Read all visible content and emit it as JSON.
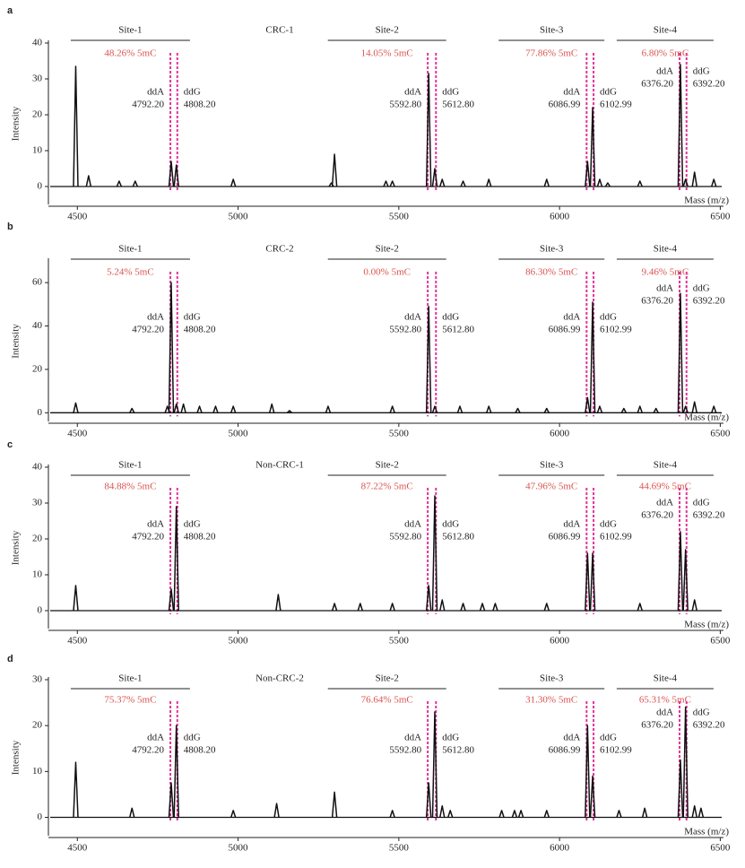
{
  "chart_data": [
    {
      "type": "spectrum",
      "panel": "a",
      "title": "CRC-1",
      "y_label": "Intensity",
      "x_label": "Mass (m/z)",
      "color": "#111111",
      "marker_color": "#e0359a",
      "percent_color": "#d9534f",
      "xlim": [
        4410,
        6510
      ],
      "xticks": [
        4500,
        5000,
        5500,
        6000,
        6500
      ],
      "ylim": [
        -5,
        40
      ],
      "yticks": [
        0,
        10,
        20,
        30,
        40
      ],
      "x": [
        4495,
        4535,
        4630,
        4680,
        4792,
        4808,
        4985,
        5290,
        5300,
        5460,
        5480,
        5593,
        5612,
        5635,
        5700,
        5780,
        5960,
        6087,
        6103,
        6125,
        6150,
        6250,
        6376,
        6392,
        6420,
        6480
      ],
      "values": [
        33.5,
        3,
        1.5,
        1.5,
        7,
        6,
        2,
        1,
        9,
        1.5,
        1.5,
        31.5,
        5,
        2,
        1.5,
        2,
        2,
        7,
        22,
        2,
        1,
        1.5,
        34,
        2,
        4,
        2
      ],
      "sites": [
        {
          "name": "Site-1",
          "mC": "48.26% 5mC",
          "ddA": {
            "label": "ddA",
            "mass": {
              "value": 4792.2,
              "label": "4792.20"
            }
          },
          "ddG": {
            "label": "ddG",
            "mass": {
              "value": 4808.2,
              "label": "4808.20"
            }
          }
        },
        {
          "name": "Site-2",
          "mC": "14.05% 5mC",
          "ddA": {
            "label": "ddA",
            "mass": {
              "value": 5592.8,
              "label": "5592.80"
            }
          },
          "ddG": {
            "label": "ddG",
            "mass": {
              "value": 5612.8,
              "label": "5612.80"
            }
          }
        },
        {
          "name": "Site-3",
          "mC": "77.86% 5mC",
          "ddA": {
            "label": "ddA",
            "mass": 6086.99
          },
          "ddG": {
            "label": "ddG",
            "mass": 6102.99
          }
        },
        {
          "name": "Site-4",
          "mC": "6.80% 5mC",
          "ddA": {
            "label": "ddA",
            "mass": {
              "value": 6376.2,
              "label": "6376.20"
            }
          },
          "ddG": {
            "label": "ddG",
            "mass": {
              "value": 6392.2,
              "label": "6392.20"
            }
          }
        }
      ]
    },
    {
      "type": "spectrum",
      "panel": "b",
      "title": "CRC-2",
      "y_label": "Intensity",
      "x_label": "Mass (m/z)",
      "color": "#111111",
      "marker_color": "#e0359a",
      "percent_color": "#d9534f",
      "xlim": [
        4410,
        6510
      ],
      "xticks": [
        4500,
        5000,
        5500,
        6000,
        6500
      ],
      "ylim": [
        -4,
        70
      ],
      "yticks": [
        0,
        20,
        40,
        60
      ],
      "x": [
        4495,
        4670,
        4780,
        4792,
        4808,
        4830,
        4880,
        4930,
        4985,
        5105,
        5160,
        5280,
        5480,
        5593,
        5612,
        5690,
        5780,
        5870,
        5960,
        6087,
        6103,
        6125,
        6200,
        6250,
        6300,
        6376,
        6392,
        6420,
        6480
      ],
      "values": [
        4.5,
        2,
        3,
        60,
        4,
        4,
        3,
        3,
        3,
        4,
        1,
        3,
        3,
        49,
        3,
        3,
        3,
        2,
        2,
        7,
        51,
        3,
        2,
        3,
        2,
        55,
        3,
        5,
        3
      ],
      "sites": [
        {
          "name": "Site-1",
          "mC": "5.24% 5mC",
          "ddA": {
            "label": "ddA",
            "mass": {
              "value": 4792.2,
              "label": "4792.20"
            }
          },
          "ddG": {
            "label": "ddG",
            "mass": {
              "value": 4808.2,
              "label": "4808.20"
            }
          }
        },
        {
          "name": "Site-2",
          "mC": "0.00% 5mC",
          "ddA": {
            "label": "ddA",
            "mass": {
              "value": 5592.8,
              "label": "5592.80"
            }
          },
          "ddG": {
            "label": "ddG",
            "mass": {
              "value": 5612.8,
              "label": "5612.80"
            }
          }
        },
        {
          "name": "Site-3",
          "mC": "86.30% 5mC",
          "ddA": {
            "label": "ddA",
            "mass": 6086.99
          },
          "ddG": {
            "label": "ddG",
            "mass": 6102.99
          }
        },
        {
          "name": "Site-4",
          "mC": "9.46% 5mC",
          "ddA": {
            "label": "ddA",
            "mass": {
              "value": 6376.2,
              "label": "6376.20"
            }
          },
          "ddG": {
            "label": "ddG",
            "mass": {
              "value": 6392.2,
              "label": "6392.20"
            }
          }
        }
      ]
    },
    {
      "type": "spectrum",
      "panel": "c",
      "title": "Non-CRC-1",
      "y_label": "Intensity",
      "x_label": "Mass (m/z)",
      "color": "#111111",
      "marker_color": "#e0359a",
      "percent_color": "#d9534f",
      "xlim": [
        4410,
        6510
      ],
      "xticks": [
        4500,
        5000,
        5500,
        6000,
        6500
      ],
      "ylim": [
        -5,
        40
      ],
      "yticks": [
        0,
        10,
        20,
        30,
        40
      ],
      "x": [
        4495,
        4792,
        4808,
        5125,
        5300,
        5380,
        5480,
        5593,
        5612,
        5635,
        5700,
        5760,
        5800,
        5960,
        6087,
        6103,
        6250,
        6376,
        6392,
        6420
      ],
      "values": [
        7,
        6,
        29,
        4.5,
        2,
        2,
        2,
        7,
        32,
        3,
        2,
        2,
        2,
        2,
        16,
        16,
        2,
        22,
        17,
        3
      ],
      "sites": [
        {
          "name": "Site-1",
          "mC": "84.88% 5mC",
          "ddA": {
            "label": "ddA",
            "mass": {
              "value": 4792.2,
              "label": "4792.20"
            }
          },
          "ddG": {
            "label": "ddG",
            "mass": {
              "value": 4808.2,
              "label": "4808.20"
            }
          }
        },
        {
          "name": "Site-2",
          "mC": "87.22% 5mC",
          "ddA": {
            "label": "ddA",
            "mass": {
              "value": 5592.8,
              "label": "5592.80"
            }
          },
          "ddG": {
            "label": "ddG",
            "mass": {
              "value": 5612.8,
              "label": "5612.80"
            }
          }
        },
        {
          "name": "Site-3",
          "mC": "47.96% 5mC",
          "ddA": {
            "label": "ddA",
            "mass": 6086.99
          },
          "ddG": {
            "label": "ddG",
            "mass": 6102.99
          }
        },
        {
          "name": "Site-4",
          "mC": "44.69% 5mC",
          "ddA": {
            "label": "ddA",
            "mass": {
              "value": 6376.2,
              "label": "6376.20"
            }
          },
          "ddG": {
            "label": "ddG",
            "mass": {
              "value": 6392.2,
              "label": "6392.20"
            }
          }
        }
      ]
    },
    {
      "type": "spectrum",
      "panel": "d",
      "title": "Non-CRC-2",
      "y_label": "Intensity",
      "x_label": "Mass (m/z)",
      "color": "#111111",
      "marker_color": "#e0359a",
      "percent_color": "#d9534f",
      "xlim": [
        4410,
        6510
      ],
      "xticks": [
        4500,
        5000,
        5500,
        6000,
        6500
      ],
      "ylim": [
        -4,
        30
      ],
      "yticks": [
        0,
        10,
        20,
        30
      ],
      "x": [
        4495,
        4670,
        4792,
        4808,
        4985,
        5120,
        5300,
        5480,
        5593,
        5612,
        5635,
        5660,
        5820,
        5860,
        5880,
        5960,
        6087,
        6103,
        6185,
        6265,
        6376,
        6392,
        6420,
        6440
      ],
      "values": [
        12,
        2,
        7.5,
        20,
        1.5,
        3,
        5.5,
        1.5,
        7.5,
        23,
        2.5,
        1.5,
        1.5,
        1.5,
        1.5,
        1.5,
        20,
        9,
        1.5,
        2,
        12.5,
        24,
        2.5,
        2
      ],
      "sites": [
        {
          "name": "Site-1",
          "mC": "75.37% 5mC",
          "ddA": {
            "label": "ddA",
            "mass": {
              "value": 4792.2,
              "label": "4792.20"
            }
          },
          "ddG": {
            "label": "ddG",
            "mass": {
              "value": 4808.2,
              "label": "4808.20"
            }
          }
        },
        {
          "name": "Site-2",
          "mC": "76.64% 5mC",
          "ddA": {
            "label": "ddA",
            "mass": {
              "value": 5592.8,
              "label": "5592.80"
            }
          },
          "ddG": {
            "label": "ddG",
            "mass": {
              "value": 5612.8,
              "label": "5612.80"
            }
          }
        },
        {
          "name": "Site-3",
          "mC": "31.30% 5mC",
          "ddA": {
            "label": "ddA",
            "mass": 6086.99
          },
          "ddG": {
            "label": "ddG",
            "mass": 6102.99
          }
        },
        {
          "name": "Site-4",
          "mC": "65.31% 5mC",
          "ddA": {
            "label": "ddA",
            "mass": {
              "value": 6376.2,
              "label": "6376.20"
            }
          },
          "ddG": {
            "label": "ddG",
            "mass": {
              "value": 6392.2,
              "label": "6392.20"
            }
          }
        }
      ]
    }
  ]
}
